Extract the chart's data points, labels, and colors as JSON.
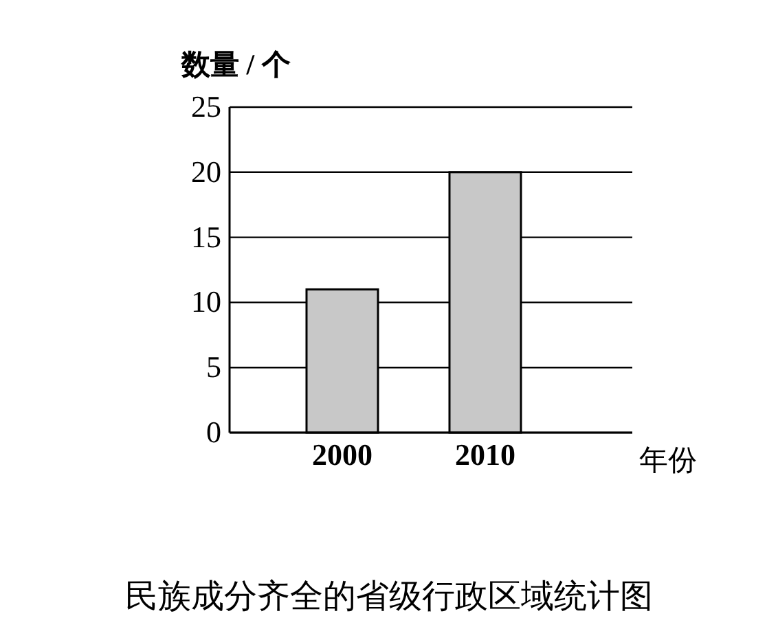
{
  "chart_data": {
    "type": "bar",
    "title": "民族成分齐全的省级行政区域统计图",
    "xlabel": "年份",
    "ylabel": "数量 / 个",
    "categories": [
      "2000",
      "2010"
    ],
    "values": [
      11,
      20
    ],
    "color": "#c8c8c8",
    "ylim": [
      0,
      25
    ],
    "yticks": [
      0,
      5,
      10,
      15,
      20,
      25
    ],
    "grid": "y"
  }
}
